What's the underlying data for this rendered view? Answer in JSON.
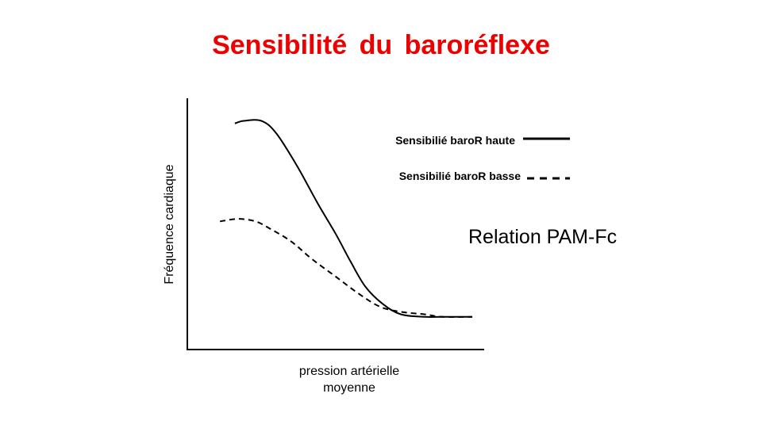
{
  "slide": {
    "title": "Sensibilité du baroréflexe",
    "annotation": "Relation PAM-Fc"
  },
  "colors": {
    "title": "#ee0000",
    "axes": "#000000",
    "series": "#000000"
  },
  "chart_data": {
    "type": "line",
    "title": "",
    "xlabel_lines": [
      "pression artérielle",
      "moyenne"
    ],
    "ylabel": "Fréquence cardiaque",
    "xlim": [
      0,
      1
    ],
    "ylim": [
      0,
      1
    ],
    "grid": false,
    "ticks": "none",
    "legend_placement": "top-right",
    "series": [
      {
        "name": "Sensibilié baroR haute",
        "style": "solid",
        "x": [
          0.16,
          0.19,
          0.25,
          0.3,
          0.37,
          0.44,
          0.5,
          0.55,
          0.6,
          0.66,
          0.72,
          0.8,
          0.86,
          0.96
        ],
        "y": [
          0.9,
          0.91,
          0.91,
          0.86,
          0.73,
          0.58,
          0.46,
          0.35,
          0.25,
          0.18,
          0.14,
          0.13,
          0.13,
          0.13
        ]
      },
      {
        "name": "Sensibilié baroR basse",
        "style": "dashed",
        "x": [
          0.11,
          0.17,
          0.23,
          0.28,
          0.35,
          0.42,
          0.5,
          0.58,
          0.65,
          0.72,
          0.8,
          0.86,
          0.96
        ],
        "y": [
          0.51,
          0.52,
          0.51,
          0.48,
          0.43,
          0.36,
          0.29,
          0.22,
          0.17,
          0.15,
          0.14,
          0.13,
          0.13
        ]
      }
    ]
  }
}
